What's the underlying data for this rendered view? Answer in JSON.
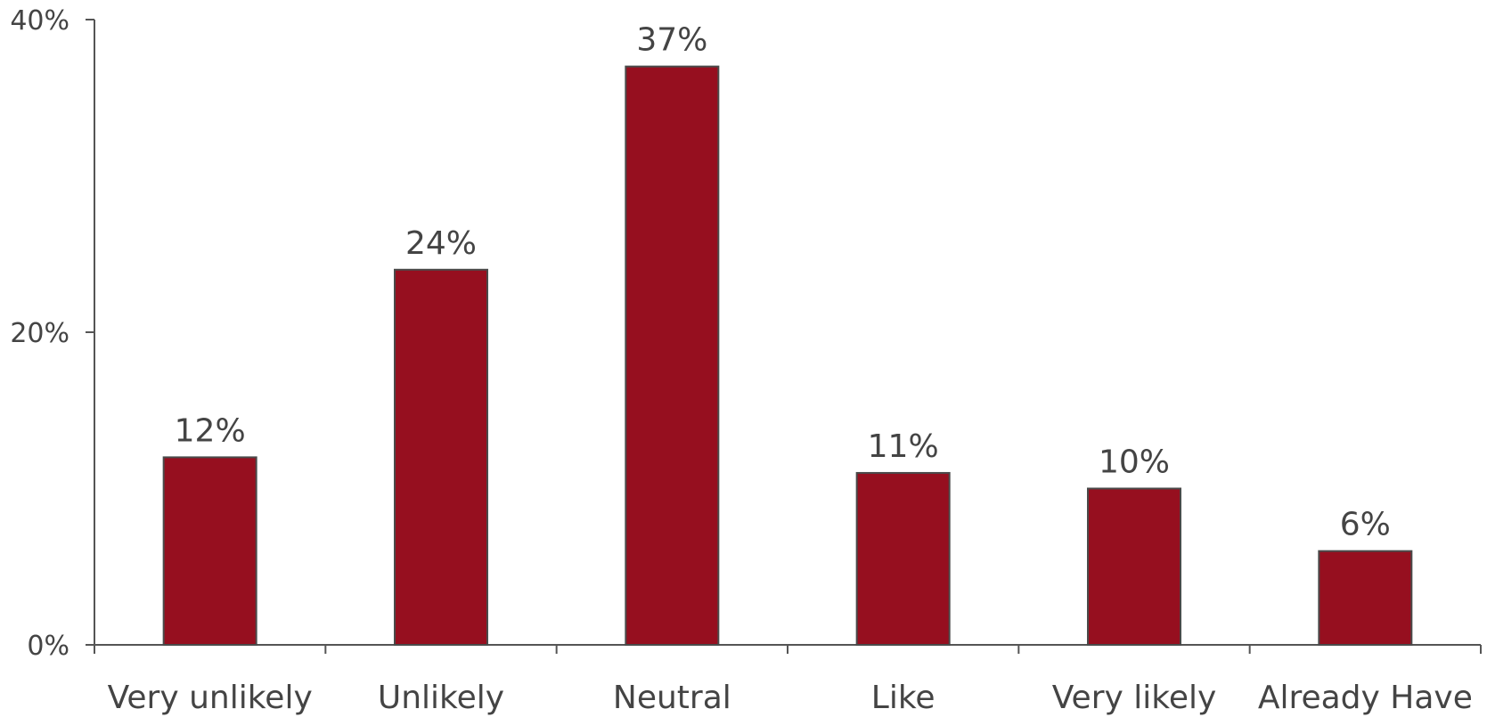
{
  "chart_data": {
    "type": "bar",
    "title": "",
    "xlabel": "",
    "ylabel": "",
    "categories": [
      "Very unlikely",
      "Unlikely",
      "Neutral",
      "Like",
      "Very likely",
      "Already Have"
    ],
    "values": [
      12,
      24,
      37,
      11,
      10,
      6
    ],
    "value_labels": [
      "12%",
      "24%",
      "37%",
      "11%",
      "10%",
      "6%"
    ],
    "ylim": [
      0,
      40
    ],
    "y_ticks": [
      0,
      20,
      40
    ],
    "y_tick_labels": [
      "0%",
      "20%",
      "40%"
    ],
    "grid": false,
    "legend": "none",
    "bar_color": "#960F1F"
  }
}
